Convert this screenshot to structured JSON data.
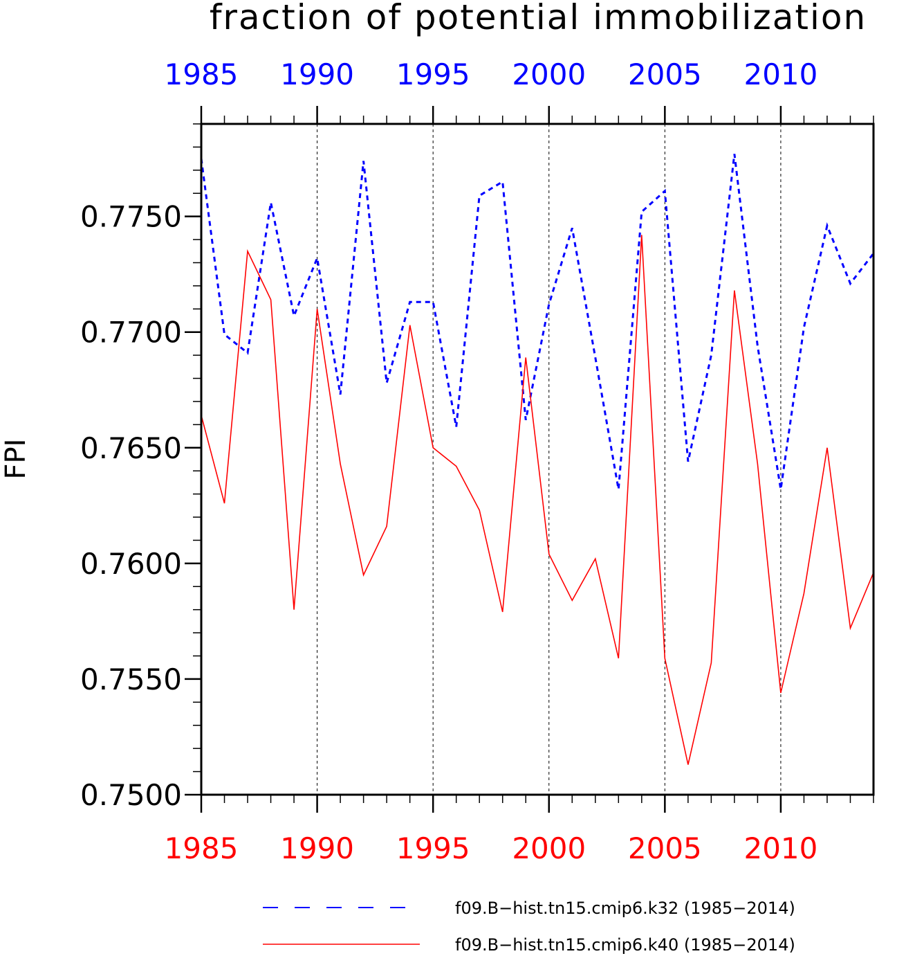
{
  "chart_data": {
    "type": "line",
    "title": "fraction of potential immobilization",
    "ylabel": "FPI",
    "xlabel": "",
    "xlim": [
      1985,
      2014
    ],
    "ylim": [
      0.75,
      0.779
    ],
    "x_tick_labels_top": [
      "1985",
      "1990",
      "1995",
      "2000",
      "2005",
      "2010"
    ],
    "x_tick_labels_bottom": [
      "1985",
      "1990",
      "1995",
      "2000",
      "2005",
      "2010"
    ],
    "y_tick_labels": [
      "0.7500",
      "0.7550",
      "0.7600",
      "0.7650",
      "0.7700",
      "0.7750"
    ],
    "y_ticks": [
      0.75,
      0.755,
      0.76,
      0.765,
      0.77,
      0.775
    ],
    "x_ticks": [
      1985,
      1990,
      1995,
      2000,
      2005,
      2010
    ],
    "grid": "vertical dashed at major x ticks",
    "legend_position": "bottom",
    "x": [
      1985,
      1986,
      1987,
      1988,
      1989,
      1990,
      1991,
      1992,
      1993,
      1994,
      1995,
      1996,
      1997,
      1998,
      1999,
      2000,
      2001,
      2002,
      2003,
      2004,
      2005,
      2006,
      2007,
      2008,
      2009,
      2010,
      2011,
      2012,
      2013,
      2014
    ],
    "series": [
      {
        "name": "f09.B−hist.tn15.cmip6.k32 (1985−2014)",
        "color": "#0000ff",
        "style": "dashed",
        "values": [
          0.7775,
          0.7699,
          0.7691,
          0.7756,
          0.7707,
          0.7732,
          0.7673,
          0.7774,
          0.7678,
          0.7713,
          0.7713,
          0.7659,
          0.7759,
          0.7765,
          0.7662,
          0.7712,
          0.7745,
          0.7689,
          0.7632,
          0.7752,
          0.7761,
          0.7644,
          0.769,
          0.7777,
          0.7694,
          0.7632,
          0.7702,
          0.7746,
          0.7721,
          0.7734
        ]
      },
      {
        "name": "f09.B−hist.tn15.cmip6.k40 (1985−2014)",
        "color": "#ff0000",
        "style": "solid",
        "values": [
          0.7664,
          0.7626,
          0.7735,
          0.7714,
          0.758,
          0.771,
          0.7643,
          0.7595,
          0.7616,
          0.7703,
          0.765,
          0.7642,
          0.7623,
          0.7579,
          0.7689,
          0.7604,
          0.7584,
          0.7602,
          0.7559,
          0.7742,
          0.7559,
          0.7513,
          0.7557,
          0.7718,
          0.7643,
          0.7544,
          0.7587,
          0.765,
          0.7572,
          0.7596
        ]
      }
    ]
  }
}
